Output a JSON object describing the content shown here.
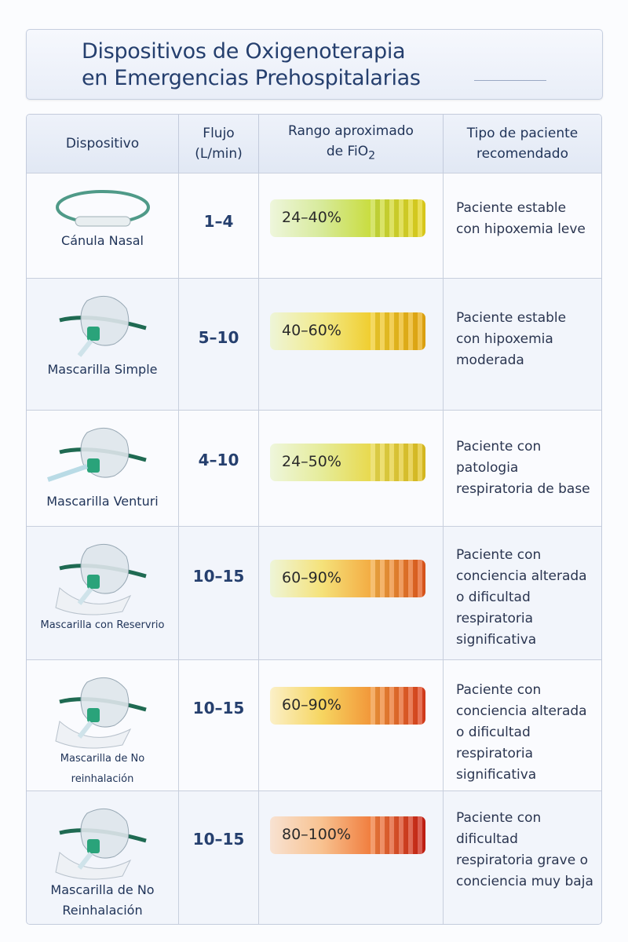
{
  "title": {
    "line1": "Dispositivos de Oxigenoterapia",
    "line2": "en Emergencias Prehospitalarias"
  },
  "headers": {
    "device": "Dispositivo",
    "flow_l1": "Flujo",
    "flow_l2": "(L/min)",
    "fio2_l1": "Rango aproximado",
    "fio2_l2": "de FiO",
    "fio2_sub": "2",
    "patient_l1": "Tipo de paciente",
    "patient_l2": "recomendado"
  },
  "rows": [
    {
      "device": "Cánula Nasal",
      "icon": "nasal-cannula",
      "flow": "1–4",
      "fio2": "24–40%",
      "gradient": [
        "#eef6dc",
        "#d7ea9a",
        "#c8dc3a",
        "#e5d21c"
      ],
      "patient": "Paciente estable con hipoxemia leve"
    },
    {
      "device": "Mascarilla Simple",
      "icon": "simple-mask",
      "flow": "5–10",
      "fio2": "40–60%",
      "gradient": [
        "#eef5d8",
        "#f2ea8a",
        "#f0cc2a",
        "#e8a810"
      ],
      "patient": "Paciente estable con hipoxemia moderada"
    },
    {
      "device": "Mascarilla Venturi",
      "icon": "venturi-mask",
      "flow": "4–10",
      "fio2": "24–50%",
      "gradient": [
        "#eef6dc",
        "#e6ec9a",
        "#e8d84a",
        "#e0c020"
      ],
      "patient": "Paciente con patologia respiratoria de base"
    },
    {
      "device": "Mascarilla con Reservrio",
      "icon": "reservoir-mask",
      "flow": "10–15",
      "fio2": "60–90%",
      "gradient": [
        "#eef5d8",
        "#f5e27a",
        "#f3a940",
        "#e2561c"
      ],
      "patient": "Paciente con conciencia alterada o dificultad respiratoria significativa"
    },
    {
      "device": "Mascarilla de No reinhalación",
      "icon": "non-rebreather-mask",
      "flow": "10–15",
      "fio2": "60–90%",
      "gradient": [
        "#fbf0c8",
        "#f6d560",
        "#f29438",
        "#dc3c1c"
      ],
      "patient": "Paciente con conciencia alterada o dificultad respiratoria significativa"
    },
    {
      "device": "Mascarilla de No Reinhalación",
      "icon": "non-rebreather-mask",
      "flow": "10–15",
      "fio2": "80–100%",
      "gradient": [
        "#f8e2d2",
        "#f8c290",
        "#f07a3a",
        "#c81e12"
      ],
      "patient": "Paciente con dificultad respiratoria grave o conciencia muy baja"
    }
  ]
}
